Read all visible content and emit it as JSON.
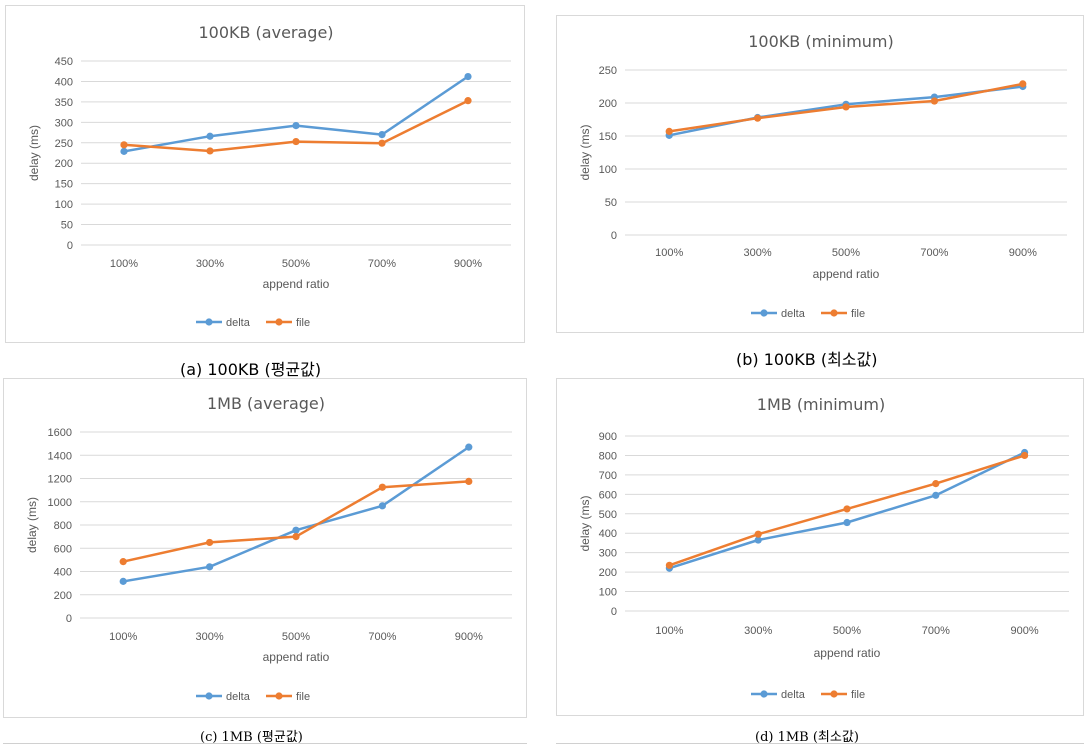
{
  "colors": {
    "delta": "#5b9bd5",
    "file": "#ed7d31",
    "grid": "#d9d9d9",
    "text": "#595959"
  },
  "captions": {
    "a": "(a)  100KB  (평균값)",
    "b": "(b)  100KB  (최소값)",
    "c": "(c)  1MB  (평균값)",
    "d": "(d)  1MB  (최소값)"
  },
  "chart_data": [
    {
      "type": "line",
      "title": "100KB (average)",
      "xlabel": "append ratio",
      "ylabel": "delay (ms)",
      "categories": [
        "100%",
        "300%",
        "500%",
        "700%",
        "900%"
      ],
      "ylim": [
        0,
        450
      ],
      "yticks": [
        0,
        50,
        100,
        150,
        200,
        250,
        300,
        350,
        400,
        450
      ],
      "grid": true,
      "legend": "bottom",
      "series": [
        {
          "name": "delta",
          "values": [
            229,
            266,
            292,
            270,
            412
          ]
        },
        {
          "name": "file",
          "values": [
            245,
            230,
            253,
            249,
            353
          ]
        }
      ]
    },
    {
      "type": "line",
      "title": "100KB (minimum)",
      "xlabel": "append ratio",
      "ylabel": "delay (ms)",
      "categories": [
        "100%",
        "300%",
        "500%",
        "700%",
        "900%"
      ],
      "ylim": [
        0,
        250
      ],
      "yticks": [
        0,
        50,
        100,
        150,
        200,
        250
      ],
      "grid": true,
      "legend": "bottom",
      "series": [
        {
          "name": "delta",
          "values": [
            151,
            178,
            198,
            209,
            225
          ]
        },
        {
          "name": "file",
          "values": [
            157,
            177,
            194,
            203,
            229
          ]
        }
      ]
    },
    {
      "type": "line",
      "title": "1MB (average)",
      "xlabel": "append ratio",
      "ylabel": "delay (ms)",
      "categories": [
        "100%",
        "300%",
        "500%",
        "700%",
        "900%"
      ],
      "ylim": [
        0,
        1600
      ],
      "yticks": [
        0,
        200,
        400,
        600,
        800,
        1000,
        1200,
        1400,
        1600
      ],
      "grid": true,
      "legend": "bottom",
      "series": [
        {
          "name": "delta",
          "values": [
            315,
            440,
            755,
            965,
            1470
          ]
        },
        {
          "name": "file",
          "values": [
            485,
            650,
            700,
            1125,
            1175
          ]
        }
      ]
    },
    {
      "type": "line",
      "title": "1MB (minimum)",
      "xlabel": "append ratio",
      "ylabel": "delay (ms)",
      "categories": [
        "100%",
        "300%",
        "500%",
        "700%",
        "900%"
      ],
      "ylim": [
        0,
        900
      ],
      "yticks": [
        0,
        100,
        200,
        300,
        400,
        500,
        600,
        700,
        800,
        900
      ],
      "grid": true,
      "legend": "bottom",
      "series": [
        {
          "name": "delta",
          "values": [
            220,
            365,
            455,
            595,
            815
          ]
        },
        {
          "name": "file",
          "values": [
            235,
            395,
            525,
            655,
            800
          ]
        }
      ]
    }
  ]
}
